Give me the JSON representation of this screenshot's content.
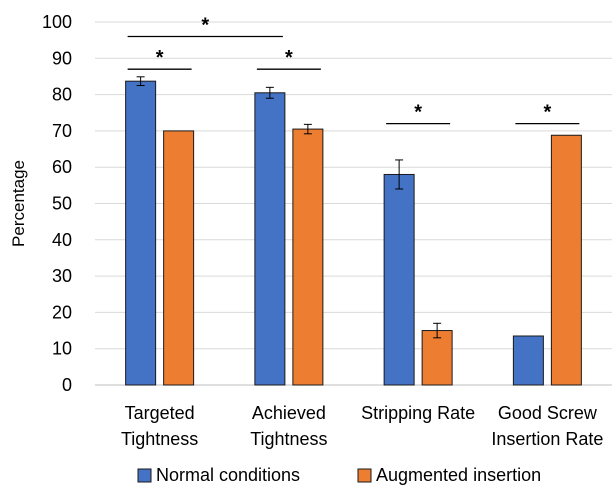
{
  "chart_data": {
    "type": "bar",
    "categories": [
      [
        "Targeted",
        "Tightness"
      ],
      [
        "Achieved",
        "Tightness"
      ],
      [
        "Stripping Rate"
      ],
      [
        "Good Screw",
        "Insertion Rate"
      ]
    ],
    "series": [
      {
        "name": "Normal conditions",
        "color": "#4472C4",
        "values": [
          83.7,
          80.5,
          58,
          13.5
        ],
        "errors": [
          1.2,
          1.5,
          4,
          null
        ]
      },
      {
        "name": "Augmented insertion",
        "color": "#ED7D31",
        "values": [
          70,
          70.5,
          15,
          68.8
        ],
        "errors": [
          null,
          1.3,
          2,
          null
        ]
      }
    ],
    "xlabel": "",
    "ylabel": "Percentage",
    "ylim": [
      0,
      100
    ],
    "yticks": [
      0,
      10,
      20,
      30,
      40,
      50,
      60,
      70,
      80,
      90,
      100
    ],
    "grid": true,
    "legend": "bottom",
    "significance": [
      {
        "label": "*",
        "from": {
          "category": 0,
          "series": 0
        },
        "to": {
          "category": 0,
          "series": 1
        },
        "y": 87
      },
      {
        "label": "*",
        "from": {
          "category": 1,
          "series": 0
        },
        "to": {
          "category": 1,
          "series": 1
        },
        "y": 87
      },
      {
        "label": "*",
        "from": {
          "category": 2,
          "series": 0
        },
        "to": {
          "category": 2,
          "series": 1
        },
        "y": 72
      },
      {
        "label": "*",
        "from": {
          "category": 3,
          "series": 0
        },
        "to": {
          "category": 3,
          "series": 1
        },
        "y": 72
      },
      {
        "label": "*",
        "from": {
          "category": 0,
          "series": 0
        },
        "to": {
          "category": 1,
          "series": 0
        },
        "y": 96
      }
    ]
  }
}
